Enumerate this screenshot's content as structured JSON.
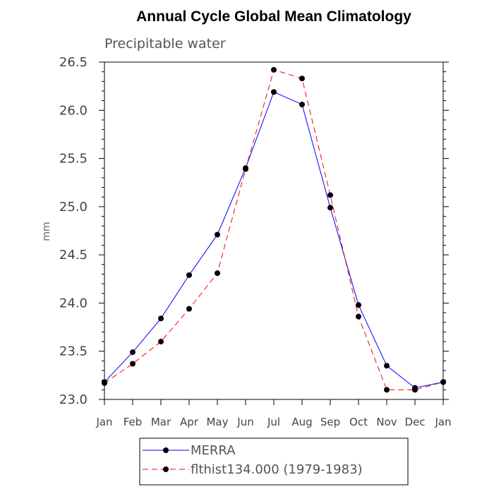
{
  "chart_data": {
    "type": "line",
    "title": "Annual Cycle Global Mean Climatology",
    "subtitle": "Precipitable water",
    "xlabel": "",
    "ylabel": "mm",
    "categories": [
      "Jan",
      "Feb",
      "Mar",
      "Apr",
      "May",
      "Jun",
      "Jul",
      "Aug",
      "Sep",
      "Oct",
      "Nov",
      "Dec",
      "Jan"
    ],
    "ylim": [
      23.0,
      26.5
    ],
    "yticks": [
      "23.0",
      "23.5",
      "24.0",
      "24.5",
      "25.0",
      "25.5",
      "26.0",
      "26.5"
    ],
    "grid": false,
    "legend_position": "bottom",
    "series": [
      {
        "name": "MERRA",
        "color": "#0000ff",
        "style": "solid",
        "values": [
          23.18,
          23.49,
          23.84,
          24.29,
          24.71,
          25.4,
          26.19,
          26.06,
          24.99,
          23.98,
          23.35,
          23.12,
          23.18
        ]
      },
      {
        "name": "flthist134.000 (1979-1983)",
        "color": "#ff0000",
        "style": "dashed",
        "values": [
          23.17,
          23.37,
          23.6,
          23.94,
          24.31,
          25.39,
          26.42,
          26.33,
          25.12,
          23.86,
          23.1,
          23.1,
          23.18
        ]
      }
    ]
  }
}
